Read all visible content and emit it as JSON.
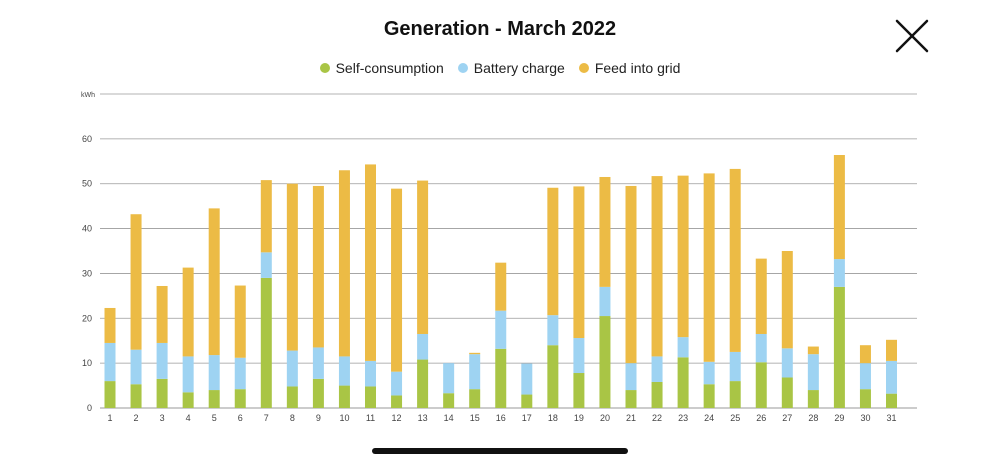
{
  "header": {
    "title": "Generation - March 2022",
    "close_icon": "close-icon"
  },
  "colors": {
    "self": "#a9c545",
    "battery": "#9ed3f2",
    "grid": "#ecbb45",
    "gridline": "#9a9a9a",
    "axis_text": "#444444"
  },
  "chart_data": {
    "type": "bar",
    "stacked": true,
    "title": "Generation - March 2022",
    "ylabel": "kWh",
    "xlabel": "",
    "ylim": [
      0,
      70
    ],
    "yticks": [
      0,
      10,
      20,
      30,
      40,
      50,
      60
    ],
    "grid": true,
    "legend_position": "top-center",
    "categories": [
      "1",
      "2",
      "3",
      "4",
      "5",
      "6",
      "7",
      "8",
      "9",
      "10",
      "11",
      "12",
      "13",
      "14",
      "15",
      "16",
      "17",
      "18",
      "19",
      "20",
      "21",
      "22",
      "23",
      "24",
      "25",
      "26",
      "27",
      "28",
      "29",
      "30",
      "31"
    ],
    "series": [
      {
        "name": "Self-consumption",
        "color": "#a9c545",
        "values": [
          6,
          5.3,
          6.5,
          3.5,
          4,
          4.2,
          29,
          4.8,
          6.5,
          5,
          4.8,
          2.8,
          10.8,
          3.3,
          4.2,
          13.2,
          3,
          14,
          7.8,
          20.5,
          4,
          5.8,
          11.3,
          5.3,
          6,
          10.2,
          6.8,
          4,
          27,
          4.2,
          3.2
        ]
      },
      {
        "name": "Battery charge",
        "color": "#9ed3f2",
        "values": [
          8.5,
          7.7,
          8,
          8,
          7.8,
          7,
          5.7,
          8,
          7,
          6.5,
          5.7,
          5.3,
          5.7,
          6.7,
          7.8,
          8.5,
          6.9,
          6.7,
          7.8,
          6.5,
          6,
          5.7,
          4.5,
          5,
          6.5,
          6.3,
          6.5,
          8,
          6.2,
          5.8,
          7.3
        ]
      },
      {
        "name": "Feed into grid",
        "color": "#ecbb45",
        "values": [
          7.8,
          30.2,
          12.7,
          19.8,
          32.7,
          16.1,
          16.1,
          37.2,
          36,
          41.5,
          43.8,
          40.8,
          34.2,
          0,
          0.3,
          10.7,
          0,
          28.4,
          33.8,
          24.5,
          39.5,
          40.2,
          36,
          42,
          40.8,
          16.8,
          21.7,
          1.7,
          23.2,
          4,
          4.7
        ]
      }
    ]
  }
}
